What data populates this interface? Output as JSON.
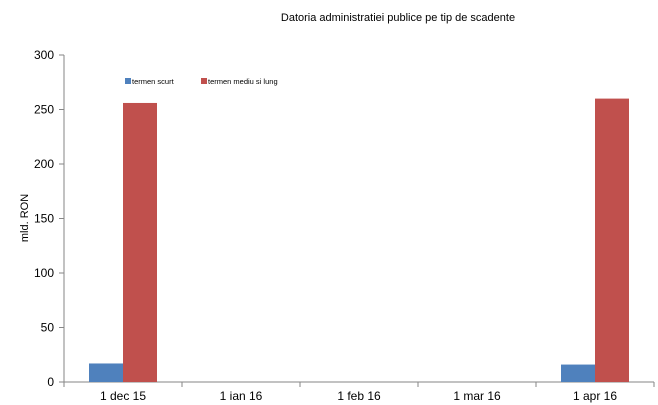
{
  "chart_data": {
    "type": "bar",
    "title": "Datoria administratiei publice  pe tip de scadente",
    "ylabel": "mld. RON",
    "xlabel": "",
    "categories": [
      "1 dec 15",
      "1 ian 16",
      "1 feb 16",
      "1 mar 16",
      "1 apr 16"
    ],
    "series": [
      {
        "name": "termen scurt",
        "color": "#4f81bd",
        "values": [
          17,
          0,
          0,
          0,
          16
        ]
      },
      {
        "name": "termen mediu si lung",
        "color": "#c0504d",
        "values": [
          256,
          0,
          0,
          0,
          260
        ]
      }
    ],
    "ylim": [
      0,
      300
    ],
    "yticks": [
      0,
      50,
      100,
      150,
      200,
      250,
      300
    ],
    "grid": false,
    "legend_position": "top-left"
  }
}
